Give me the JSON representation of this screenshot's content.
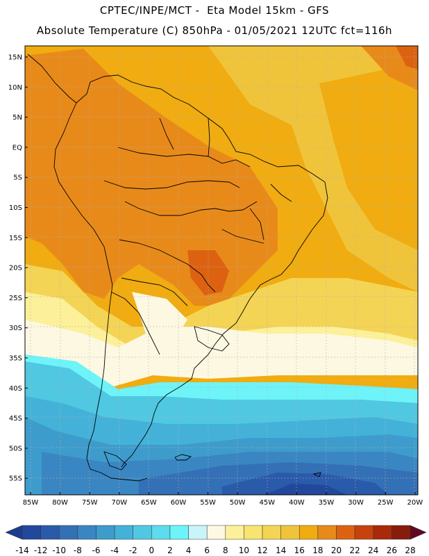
{
  "title_line1": "CPTEC/INPE/MCT -  Eta Model 15km - GFS",
  "title_line2": "Absolute Temperature (C) 850hPa - 01/05/2021 12UTC fct=116h",
  "lat_labels": [
    "15N",
    "10N",
    "5N",
    "EQ",
    "5S",
    "10S",
    "15S",
    "20S",
    "25S",
    "30S",
    "35S",
    "40S",
    "45S",
    "50S",
    "55S"
  ],
  "lon_labels": [
    "85W",
    "80W",
    "75W",
    "70W",
    "65W",
    "60W",
    "55W",
    "50W",
    "45W",
    "40W",
    "35W",
    "30W",
    "25W",
    "20W"
  ],
  "colorbar": {
    "labels": [
      "-14",
      "-12",
      "-10",
      "-8",
      "-6",
      "-4",
      "-2",
      "0",
      "2",
      "4",
      "6",
      "8",
      "10",
      "12",
      "14",
      "16",
      "18",
      "20",
      "22",
      "24",
      "26",
      "28"
    ],
    "colors": [
      "#1c3c8c",
      "#21489c",
      "#2a5aaa",
      "#3470b6",
      "#3a86c2",
      "#3e9ccc",
      "#44b2d8",
      "#50c8e2",
      "#5cdcec",
      "#6ef4f8",
      "#c8f4fa",
      "#fdf8e2",
      "#fcf09a",
      "#f8e472",
      "#f4d454",
      "#f0c43a",
      "#f0ac10",
      "#e88a1a",
      "#dc6212",
      "#c8420e",
      "#a82a0a",
      "#881c0c",
      "#600a22"
    ]
  }
}
